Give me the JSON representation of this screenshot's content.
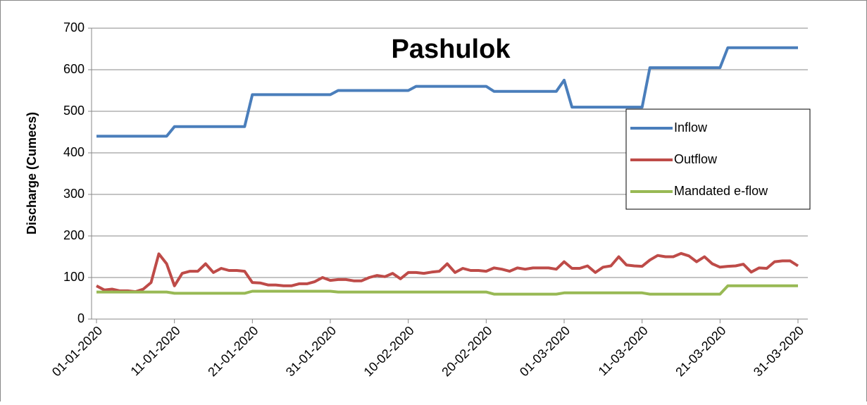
{
  "chart_data": {
    "type": "line",
    "title": "Pashulok",
    "y_label": "Discharge (Cumecs)",
    "categories": [
      "01-01-2020",
      null,
      null,
      null,
      null,
      null,
      null,
      null,
      null,
      null,
      "11-01-2020",
      null,
      null,
      null,
      null,
      null,
      null,
      null,
      null,
      null,
      "21-01-2020",
      null,
      null,
      null,
      null,
      null,
      null,
      null,
      null,
      null,
      "31-01-2020",
      null,
      null,
      null,
      null,
      null,
      null,
      null,
      null,
      null,
      "10-02-2020",
      null,
      null,
      null,
      null,
      null,
      null,
      null,
      null,
      null,
      "20-02-2020",
      null,
      null,
      null,
      null,
      null,
      null,
      null,
      null,
      null,
      "01-03-2020",
      null,
      null,
      null,
      null,
      null,
      null,
      null,
      null,
      null,
      "11-03-2020",
      null,
      null,
      null,
      null,
      null,
      null,
      null,
      null,
      null,
      "21-03-2020",
      null,
      null,
      null,
      null,
      null,
      null,
      null,
      null,
      null,
      "31-03-2020"
    ],
    "series": [
      {
        "name": "Inflow",
        "color": "#4a7ebb",
        "values": [
          440,
          440,
          440,
          440,
          440,
          440,
          440,
          440,
          440,
          440,
          463,
          463,
          463,
          463,
          463,
          463,
          463,
          463,
          463,
          463,
          540,
          540,
          540,
          540,
          540,
          540,
          540,
          540,
          540,
          540,
          540,
          550,
          550,
          550,
          550,
          550,
          550,
          550,
          550,
          550,
          550,
          560,
          560,
          560,
          560,
          560,
          560,
          560,
          560,
          560,
          560,
          548,
          548,
          548,
          548,
          548,
          548,
          548,
          548,
          548,
          575,
          510,
          510,
          510,
          510,
          510,
          510,
          510,
          510,
          510,
          510,
          605,
          605,
          605,
          605,
          605,
          605,
          605,
          605,
          605,
          605,
          653,
          653,
          653,
          653,
          653,
          653,
          653,
          653,
          653,
          653
        ]
      },
      {
        "name": "Outflow",
        "color": "#be4b48",
        "values": [
          80,
          70,
          72,
          68,
          68,
          66,
          72,
          88,
          157,
          133,
          80,
          110,
          115,
          115,
          133,
          112,
          122,
          117,
          117,
          115,
          88,
          87,
          82,
          82,
          80,
          80,
          85,
          85,
          90,
          100,
          93,
          95,
          95,
          92,
          92,
          100,
          105,
          102,
          110,
          97,
          112,
          112,
          110,
          113,
          115,
          133,
          112,
          122,
          117,
          117,
          115,
          123,
          120,
          115,
          123,
          120,
          123,
          123,
          123,
          120,
          138,
          122,
          122,
          128,
          112,
          125,
          128,
          150,
          130,
          128,
          127,
          142,
          153,
          150,
          150,
          158,
          152,
          138,
          150,
          133,
          125,
          127,
          128,
          132,
          113,
          123,
          122,
          138,
          140,
          140,
          128
        ]
      },
      {
        "name": "Mandated e-flow",
        "color": "#98b954",
        "values": [
          65,
          65,
          65,
          65,
          65,
          65,
          65,
          65,
          65,
          65,
          62,
          62,
          62,
          62,
          62,
          62,
          62,
          62,
          62,
          62,
          67,
          67,
          67,
          67,
          67,
          67,
          67,
          67,
          67,
          67,
          67,
          65,
          65,
          65,
          65,
          65,
          65,
          65,
          65,
          65,
          65,
          65,
          65,
          65,
          65,
          65,
          65,
          65,
          65,
          65,
          65,
          60,
          60,
          60,
          60,
          60,
          60,
          60,
          60,
          60,
          63,
          63,
          63,
          63,
          63,
          63,
          63,
          63,
          63,
          63,
          63,
          60,
          60,
          60,
          60,
          60,
          60,
          60,
          60,
          60,
          60,
          80,
          80,
          80,
          80,
          80,
          80,
          80,
          80,
          80,
          80
        ]
      }
    ],
    "ylim": [
      0,
      700
    ],
    "yticks": [
      0,
      100,
      200,
      300,
      400,
      500,
      600,
      700
    ],
    "grid": true
  }
}
